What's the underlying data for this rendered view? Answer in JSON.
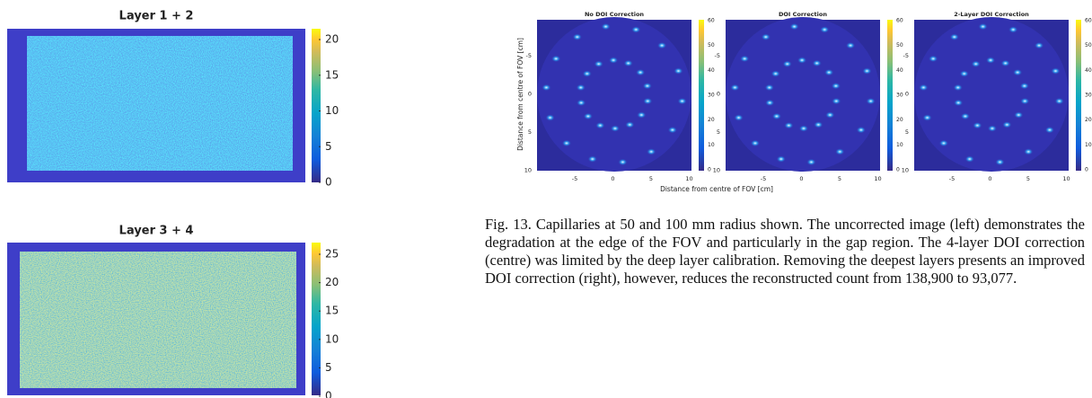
{
  "left_panels": [
    {
      "title": "Layer 1 + 2",
      "colorbar_ticks": [
        "20",
        "15",
        "10",
        "5",
        "0"
      ]
    },
    {
      "title": "Layer 3 + 4",
      "colorbar_ticks": [
        "25",
        "20",
        "15",
        "10",
        "5",
        "0"
      ]
    }
  ],
  "right_figure": {
    "panels": [
      {
        "title": "No DOI Correction"
      },
      {
        "title": "DOI Correction"
      },
      {
        "title": "2-Layer DOI Correction"
      }
    ],
    "colorbar_ticks": [
      "60",
      "50",
      "40",
      "30",
      "20",
      "10",
      "0"
    ],
    "y_ticks": [
      "-5",
      "0",
      "5",
      "10"
    ],
    "x_ticks": [
      "-5",
      "0",
      "5",
      "10"
    ],
    "y_label": "Distance from centre of FOV [cm]",
    "x_label": "Distance from centre of FOV [cm]"
  },
  "caption": "Fig. 13.  Capillaries at 50 and 100 mm radius shown. The uncorrected image (left) demonstrates the degradation at the edge of the FOV and particularly in the gap region. The 4-layer DOI correction (centre) was limited by the deep layer calibration. Removing the deepest layers presents an improved DOI correction (right), however, reduces the reconstructed count from 138,900 to 93,077."
}
